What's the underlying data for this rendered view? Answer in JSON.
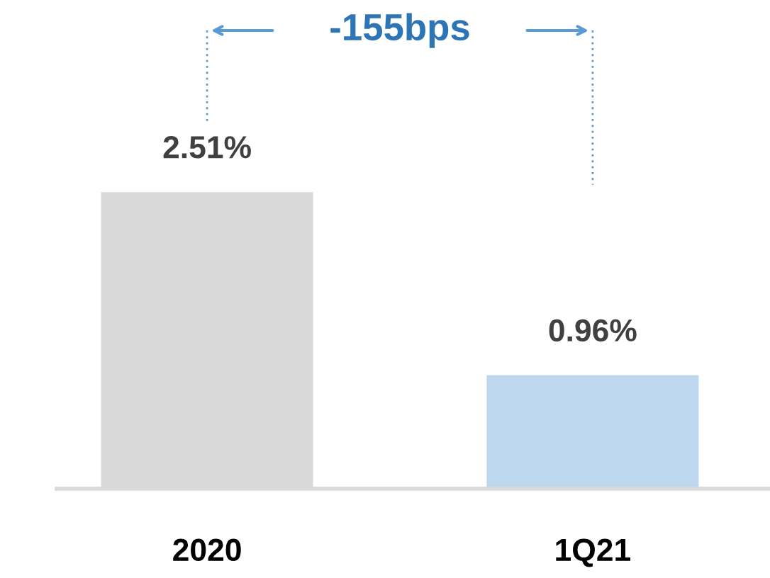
{
  "chart_data": {
    "type": "bar",
    "categories": [
      "2020",
      "1Q21"
    ],
    "values": [
      2.51,
      0.96
    ],
    "colors": [
      "#d9d9d9",
      "#bdd7ee"
    ],
    "value_labels": [
      "2.51%",
      "0.96%"
    ],
    "annotations": [
      "-155bps"
    ]
  }
}
